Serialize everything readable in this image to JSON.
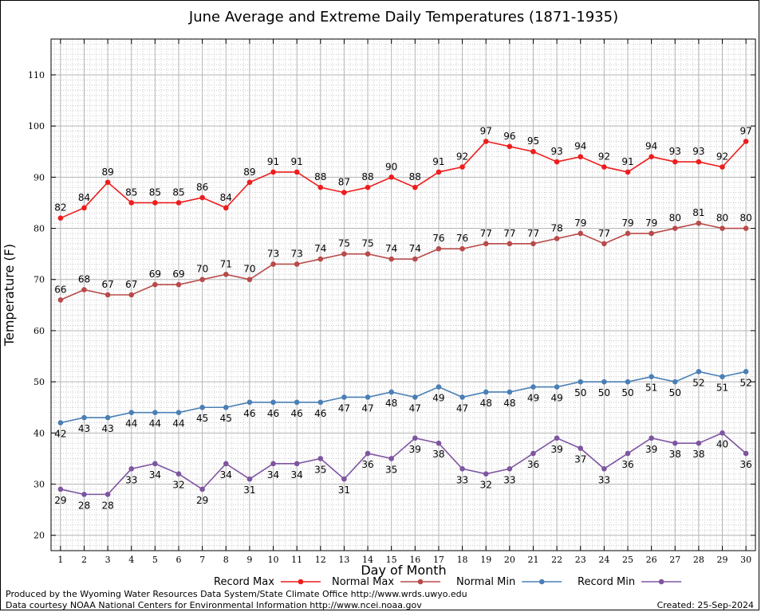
{
  "chart_data": {
    "type": "line",
    "title": "June Average and Extreme Daily Temperatures (1871-1935)",
    "xlabel": "Day of Month",
    "ylabel": "Temperature (F)",
    "x": [
      1,
      2,
      3,
      4,
      5,
      6,
      7,
      8,
      9,
      10,
      11,
      12,
      13,
      14,
      15,
      16,
      17,
      18,
      19,
      20,
      21,
      22,
      23,
      24,
      25,
      26,
      27,
      28,
      29,
      30
    ],
    "xlim": [
      0.6,
      30.4
    ],
    "ylim": [
      17,
      117
    ],
    "yticks": [
      20,
      30,
      40,
      50,
      60,
      70,
      80,
      90,
      100,
      110
    ],
    "grid": true,
    "legend_position": "bottom",
    "series": [
      {
        "name": "Record Max",
        "color": "#ee1c1c",
        "label_position": "above",
        "values": [
          82,
          84,
          89,
          85,
          85,
          85,
          86,
          84,
          89,
          91,
          91,
          88,
          87,
          88,
          90,
          88,
          91,
          92,
          97,
          96,
          95,
          93,
          94,
          92,
          91,
          94,
          93,
          93,
          92,
          97
        ]
      },
      {
        "name": "Normal Max",
        "color": "#b84a4a",
        "label_position": "above",
        "values": [
          66,
          68,
          67,
          67,
          69,
          69,
          70,
          71,
          70,
          73,
          73,
          74,
          75,
          75,
          74,
          74,
          76,
          76,
          77,
          77,
          77,
          78,
          79,
          77,
          79,
          79,
          80,
          81,
          80,
          80
        ]
      },
      {
        "name": "Normal Min",
        "color": "#4a7fb5",
        "label_position": "below",
        "values": [
          42,
          43,
          43,
          44,
          44,
          44,
          45,
          45,
          46,
          46,
          46,
          46,
          47,
          47,
          48,
          47,
          49,
          47,
          48,
          48,
          49,
          49,
          50,
          50,
          50,
          51,
          50,
          52,
          51,
          52
        ]
      },
      {
        "name": "Record Min",
        "color": "#7d55a0",
        "label_position": "below",
        "values": [
          29,
          28,
          28,
          33,
          34,
          32,
          29,
          34,
          31,
          34,
          34,
          35,
          31,
          36,
          35,
          39,
          38,
          33,
          32,
          33,
          36,
          39,
          37,
          33,
          36,
          39,
          38,
          38,
          40,
          36
        ]
      }
    ]
  },
  "footer": {
    "credit_line1": "Produced by the Wyoming Water Resources Data System/State Climate Office http://www.wrds.uwyo.edu",
    "credit_line2": "Data courtesy NOAA National Centers for Environmental Information http://www.ncei.noaa.gov",
    "created": "Created:  25-Sep-2024"
  }
}
